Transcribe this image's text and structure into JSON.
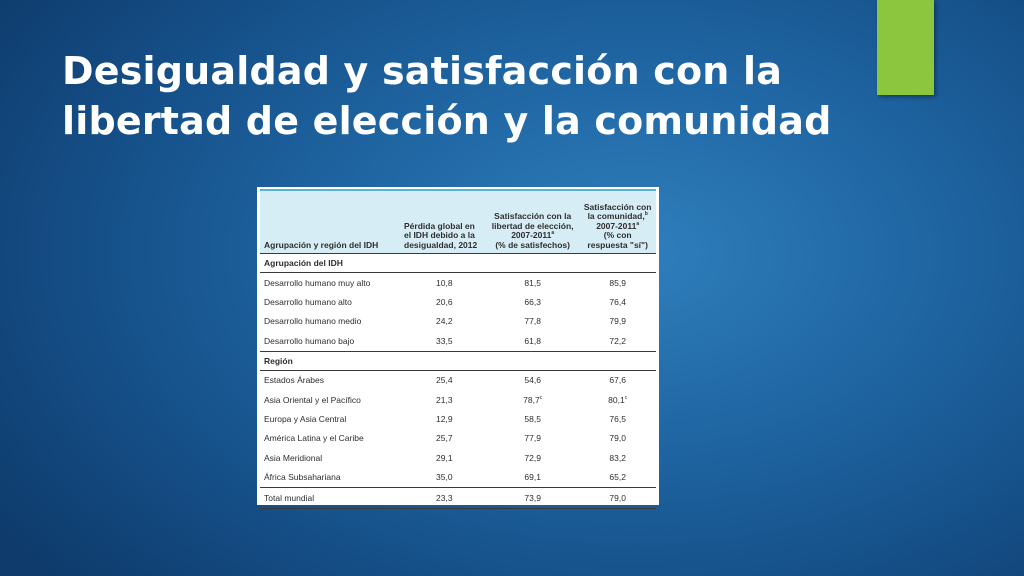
{
  "slide": {
    "title": "Desigualdad y satisfacción con la libertad de elección y la comunidad",
    "accent_color": "#8cc63f",
    "background_color": "#1f66a3"
  },
  "table": {
    "columns": [
      {
        "label": "Agrupación y región del IDH"
      },
      {
        "label": "Pérdida global en el IDH debido a la desigualdad, 2012"
      },
      {
        "label": "Satisfacción con la libertad de elección, 2007-2011",
        "sup": "a",
        "suffix": "(% de satisfechos)"
      },
      {
        "label": "Satisfacción con la comunidad,",
        "sup": "b",
        "label_2": "2007-2011",
        "sup_2": "a",
        "suffix": "(% con respuesta \"sí\")"
      }
    ],
    "sections": [
      {
        "title": "Agrupación del IDH",
        "rows": [
          {
            "label": "Desarrollo humano muy alto",
            "loss": "10,8",
            "freedom": "81,5",
            "freedom_note": "",
            "community": "85,9",
            "community_note": ""
          },
          {
            "label": "Desarrollo humano alto",
            "loss": "20,6",
            "freedom": "66,3",
            "freedom_note": "",
            "community": "76,4",
            "community_note": ""
          },
          {
            "label": "Desarrollo humano medio",
            "loss": "24,2",
            "freedom": "77,8",
            "freedom_note": "",
            "community": "79,9",
            "community_note": ""
          },
          {
            "label": "Desarrollo humano bajo",
            "loss": "33,5",
            "freedom": "61,8",
            "freedom_note": "",
            "community": "72,2",
            "community_note": ""
          }
        ]
      },
      {
        "title": "Región",
        "rows": [
          {
            "label": "Estados Árabes",
            "loss": "25,4",
            "freedom": "54,6",
            "freedom_note": "",
            "community": "67,6",
            "community_note": ""
          },
          {
            "label": "Asia Oriental y el Pacífico",
            "loss": "21,3",
            "freedom": "78,7",
            "freedom_note": "c",
            "community": "80,1",
            "community_note": "c"
          },
          {
            "label": "Europa y Asia Central",
            "loss": "12,9",
            "freedom": "58,5",
            "freedom_note": "",
            "community": "76,5",
            "community_note": ""
          },
          {
            "label": "América Latina y el Caribe",
            "loss": "25,7",
            "freedom": "77,9",
            "freedom_note": "",
            "community": "79,0",
            "community_note": ""
          },
          {
            "label": "Asia Meridional",
            "loss": "29,1",
            "freedom": "72,9",
            "freedom_note": "",
            "community": "83,2",
            "community_note": ""
          },
          {
            "label": "África Subsahariana",
            "loss": "35,0",
            "freedom": "69,1",
            "freedom_note": "",
            "community": "65,2",
            "community_note": ""
          }
        ]
      }
    ],
    "total": {
      "label": "Total mundial",
      "loss": "23,3",
      "freedom": "73,9",
      "community": "79,0"
    },
    "header_bg_color": "#d7edf6",
    "header_rule_color": "#57b2d6"
  }
}
